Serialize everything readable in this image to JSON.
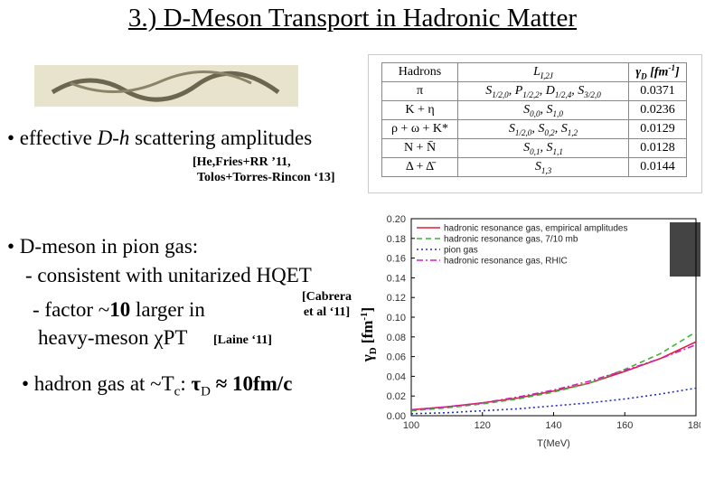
{
  "title": "3.) D-Meson Transport in Hadronic Matter",
  "bullet1": [
    "• effective ",
    "D-h",
    " scattering amplitudes"
  ],
  "ref1": [
    "[He,Fries+RR ’11,",
    "Tolos+Torres-Rincon ‘13]"
  ],
  "bullet2": "• D-meson in pion gas:",
  "sub1": "- consistent with unitarized HQET",
  "ref2": [
    "[Cabrera",
    "et al ‘11]"
  ],
  "sub2": [
    "- factor ~",
    "10",
    " larger in"
  ],
  "sub2b": [
    "heavy-meson ",
    "χ",
    "PT"
  ],
  "ref3": "[Laine ‘11]",
  "bullet3": [
    "• hadron gas at ~T",
    "c",
    ": ",
    "τ",
    "D",
    " ≈ 10fm/c"
  ],
  "table": {
    "header": {
      "hadrons": "Hadrons",
      "wave": [
        "L",
        "I,2J"
      ],
      "gamma": [
        "γ",
        "D",
        " [fm",
        "-1",
        "]"
      ]
    },
    "rows": [
      {
        "hadrons": "π",
        "waves": [
          [
            "S",
            "1/2,0"
          ],
          [
            "P",
            "1/2,2"
          ],
          [
            "D",
            "1/2,4"
          ],
          [
            "S",
            "3/2,0"
          ]
        ],
        "gamma": "0.0371"
      },
      {
        "hadrons": "K + η",
        "waves": [
          [
            "S",
            "0,0"
          ],
          [
            "S",
            "1,0"
          ]
        ],
        "gamma": "0.0236"
      },
      {
        "hadrons": "ρ + ω + K*",
        "waves": [
          [
            "S",
            "1/2,0"
          ],
          [
            "S",
            "0,2"
          ],
          [
            "S",
            "1,2"
          ]
        ],
        "gamma": "0.0129"
      },
      {
        "hadrons": "N + N̄",
        "waves": [
          [
            "S",
            "0,1"
          ],
          [
            "S",
            "1,1"
          ]
        ],
        "gamma": "0.0128"
      },
      {
        "hadrons": "Δ + Δ̄",
        "waves": [
          [
            "S",
            "1,3"
          ]
        ],
        "gamma": "0.0144"
      }
    ]
  },
  "chart_data": {
    "type": "line",
    "xlabel": "T(MeV)",
    "ylabel": [
      "γ",
      "D",
      " [fm",
      "-1",
      "]"
    ],
    "x": [
      100,
      110,
      120,
      130,
      140,
      150,
      160,
      170,
      180
    ],
    "xlim": [
      100,
      180
    ],
    "xticks": [
      100,
      120,
      140,
      160,
      180
    ],
    "ylim": [
      0,
      0.2
    ],
    "yticks": [
      {
        "value": 0,
        "label": "0.00"
      },
      {
        "value": 0.02,
        "label": "0.02"
      },
      {
        "value": 0.04,
        "label": "0.04"
      },
      {
        "value": 0.06,
        "label": "0.06"
      },
      {
        "value": 0.08,
        "label": "0.08"
      },
      {
        "value": 0.1,
        "label": "0.10"
      },
      {
        "value": 0.12,
        "label": "0.12"
      },
      {
        "value": 0.14,
        "label": "0.14"
      },
      {
        "value": 0.16,
        "label": "0.16"
      },
      {
        "value": 0.18,
        "label": "0.18"
      },
      {
        "value": 0.2,
        "label": "0.20"
      }
    ],
    "grid": false,
    "legend": "upper left",
    "series": [
      {
        "name": "hadronic resonance gas, empirical amplitudes",
        "color": "#e0203a",
        "dash": "solid",
        "values": [
          0.006,
          0.009,
          0.013,
          0.018,
          0.025,
          0.033,
          0.045,
          0.058,
          0.075
        ]
      },
      {
        "name": "hadronic resonance gas, 7/10 mb",
        "color": "#3cb43c",
        "dash": "dashed",
        "values": [
          0.005,
          0.008,
          0.012,
          0.017,
          0.024,
          0.033,
          0.047,
          0.063,
          0.085
        ]
      },
      {
        "name": "pion gas",
        "color": "#2030c0",
        "dash": "dotted",
        "values": [
          0.002,
          0.003,
          0.005,
          0.007,
          0.01,
          0.013,
          0.017,
          0.022,
          0.028
        ]
      },
      {
        "name": "hadronic resonance gas, RHIC",
        "color": "#d020c0",
        "dash": "dashdot",
        "values": [
          0.006,
          0.009,
          0.013,
          0.019,
          0.026,
          0.035,
          0.046,
          0.058,
          0.072
        ]
      }
    ]
  }
}
